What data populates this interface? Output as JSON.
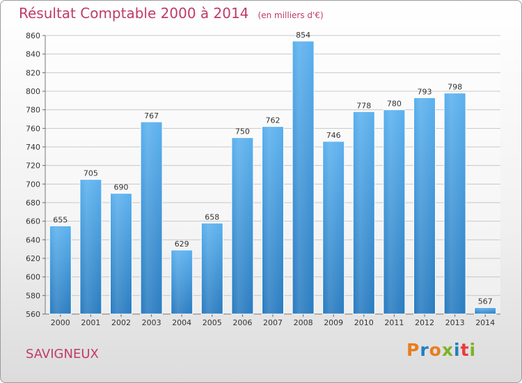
{
  "title": "Résultat Comptable 2000 à 2014",
  "title_unit": "(en milliers d'€)",
  "place": "SAVIGNEUX",
  "logo": "Proxiti",
  "logo_colors": [
    "#e87d1e",
    "#1f7ec2",
    "#e87d1e",
    "#7db227",
    "#1f7ec2",
    "#e83c3c",
    "#7db227"
  ],
  "chart_data": {
    "type": "bar",
    "categories": [
      "2000",
      "2001",
      "2002",
      "2003",
      "2004",
      "2005",
      "2006",
      "2007",
      "2008",
      "2009",
      "2010",
      "2011",
      "2012",
      "2013",
      "2014"
    ],
    "values": [
      655,
      705,
      690,
      767,
      629,
      658,
      750,
      762,
      854,
      746,
      778,
      780,
      793,
      798,
      567
    ],
    "ylim": [
      560,
      860
    ],
    "yticks": [
      560,
      580,
      600,
      620,
      640,
      660,
      680,
      700,
      720,
      740,
      760,
      780,
      800,
      820,
      840,
      860
    ],
    "grid": true,
    "bar_color": "#3d97dd"
  }
}
